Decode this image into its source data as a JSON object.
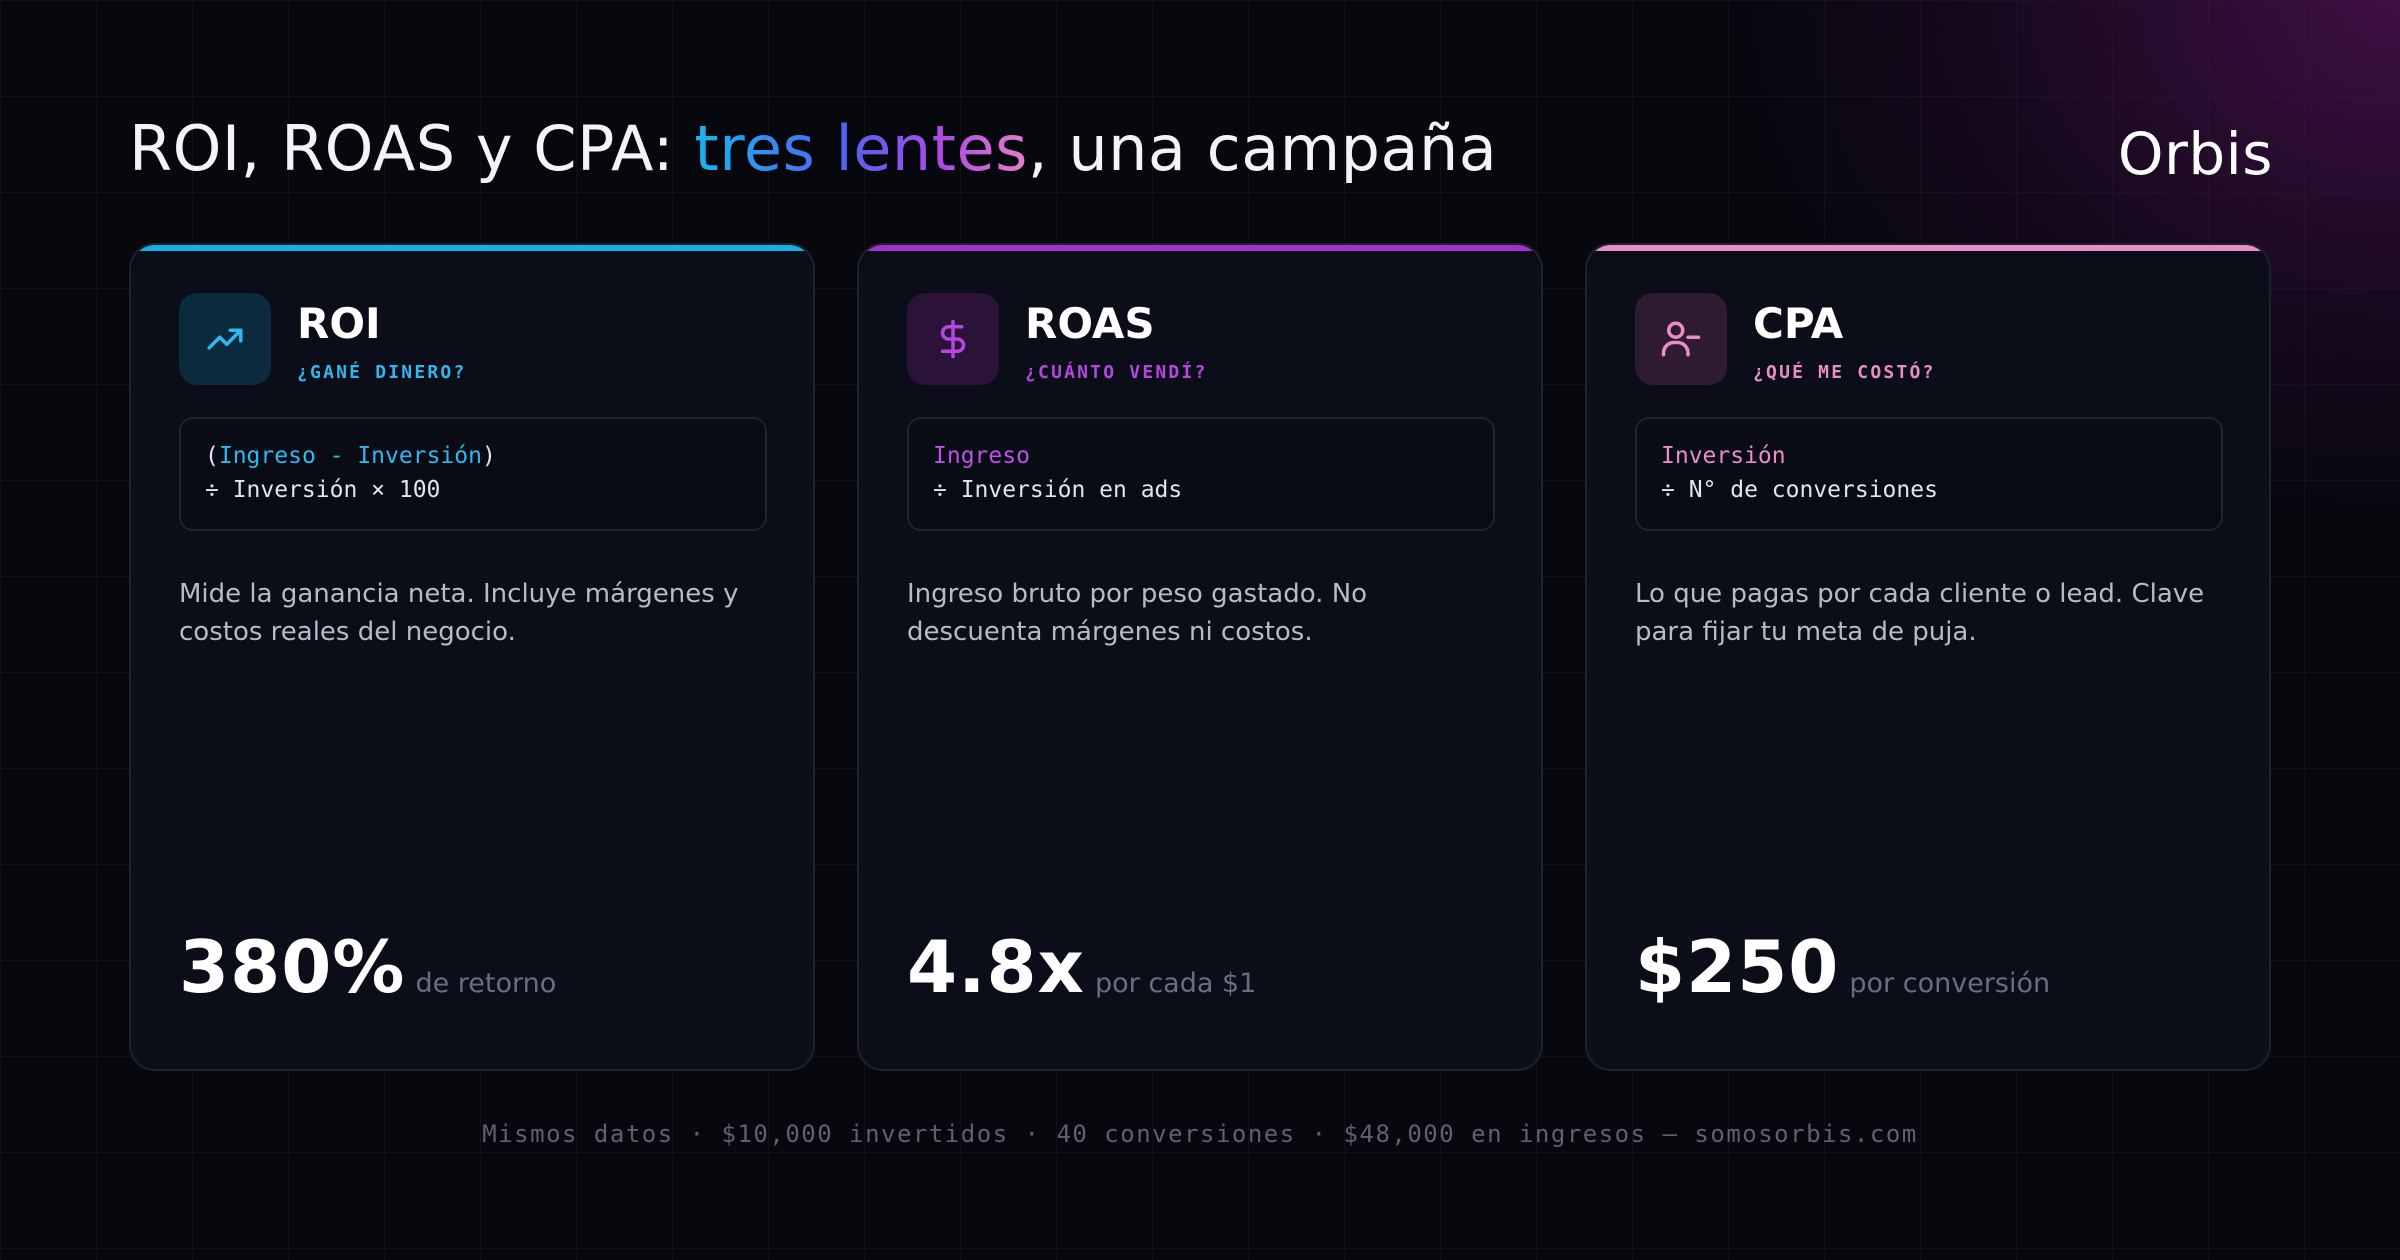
{
  "header": {
    "title_prefix": "ROI, ROAS y CPA: ",
    "title_highlight": "tres lentes",
    "title_suffix": ", una campaña",
    "brand": "Orbis"
  },
  "cards": [
    {
      "name": "ROI",
      "question": "¿GANÉ DINERO?",
      "icon": "trending-up-icon",
      "accent": "#1aaee6",
      "formula_line1_open": "(",
      "formula_line1_hl": "Ingreso - Inversión",
      "formula_line1_close": ")",
      "formula_line2": "÷ Inversión × 100",
      "description": "Mide la ganancia neta. Incluye márgenes y costos reales del negocio.",
      "value": "380%",
      "unit": "de retorno"
    },
    {
      "name": "ROAS",
      "question": "¿CUÁNTO VENDÍ?",
      "icon": "dollar-icon",
      "accent": "#a22fd0",
      "formula_line1_hl": "Ingreso",
      "formula_line2": "÷ Inversión en ads",
      "description": "Ingreso bruto por peso gastado. No descuenta márgenes ni costos.",
      "value": "4.8x",
      "unit": "por cada $1"
    },
    {
      "name": "CPA",
      "question": "¿QUÉ ME COSTÓ?",
      "icon": "user-minus-icon",
      "accent": "#e78fc4",
      "formula_line1_hl": "Inversión",
      "formula_line2": "÷ N° de conversiones",
      "description": "Lo que pagas por cada cliente o lead. Clave para fijar tu meta de puja.",
      "value": "$250",
      "unit": "por conversión"
    }
  ],
  "footer": "Mismos datos · $10,000 invertidos · 40 conversiones · $48,000 en ingresos — somosorbis.com"
}
